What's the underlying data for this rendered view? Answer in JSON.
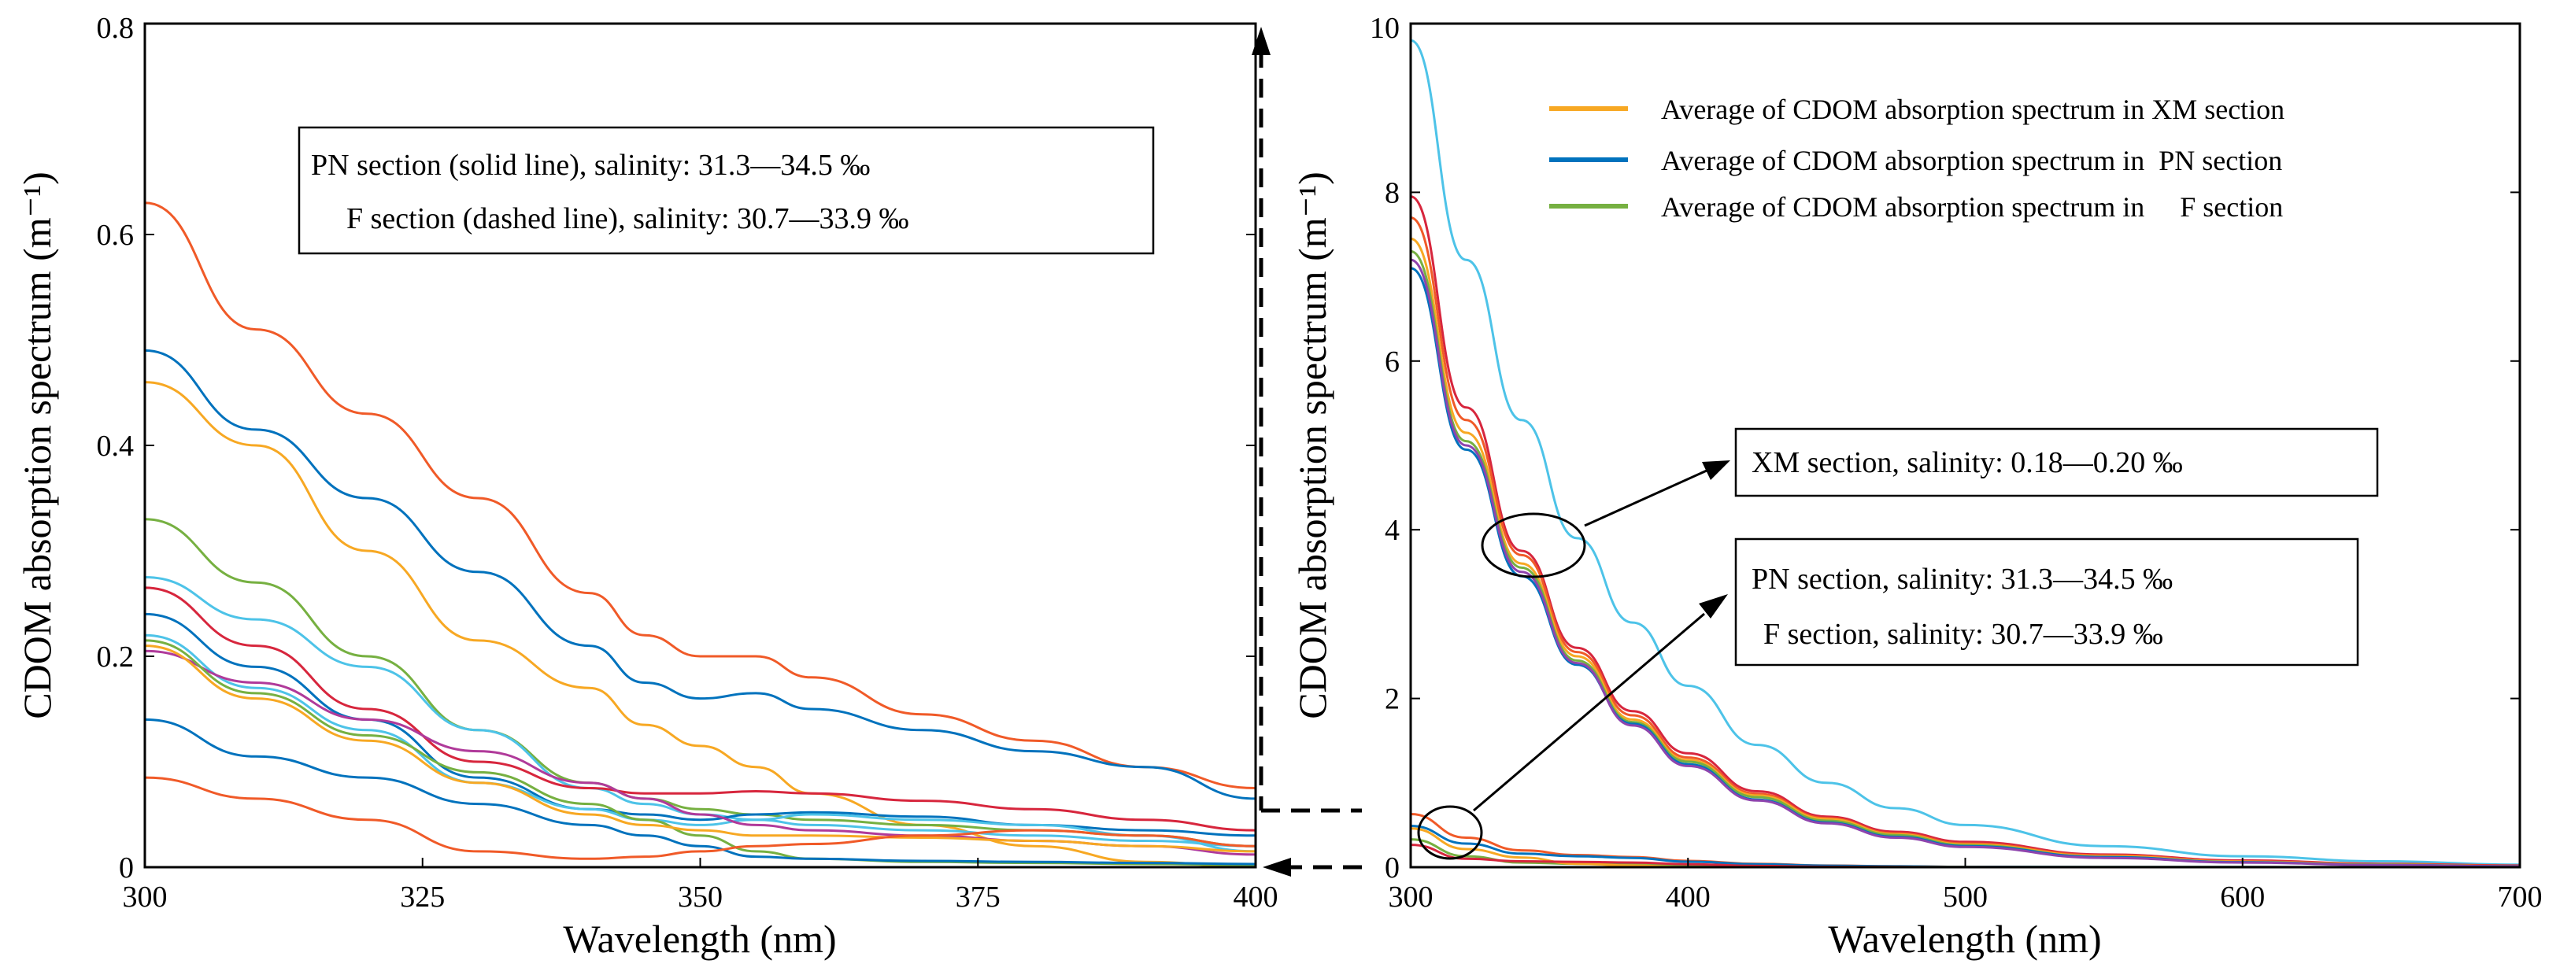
{
  "chart_data": [
    {
      "type": "line",
      "xlabel": "Wavelength (nm)",
      "ylabel": "CDOM absorption spectrum (m⁻¹)",
      "xlim": [
        300,
        400
      ],
      "ylim": [
        0,
        0.8
      ],
      "xticks": [
        "300",
        "325",
        "350",
        "375",
        "400"
      ],
      "yticks": [
        "0",
        "0.2",
        "0.4",
        "0.6",
        "0.8"
      ],
      "grid": false,
      "annotation": [
        "PN section (solid line), salinity: 31.3—34.5 ‰",
        "F section (dashed line), salinity: 30.7—33.9 ‰"
      ],
      "x": [
        300,
        310,
        320,
        330,
        340,
        345,
        350,
        355,
        360,
        370,
        380,
        390,
        400
      ],
      "series": [
        {
          "color": "#f05a28",
          "values": [
            0.63,
            0.51,
            0.43,
            0.35,
            0.26,
            0.22,
            0.2,
            0.2,
            0.18,
            0.145,
            0.12,
            0.095,
            0.075
          ]
        },
        {
          "color": "#0072bd",
          "values": [
            0.49,
            0.415,
            0.35,
            0.28,
            0.21,
            0.175,
            0.16,
            0.165,
            0.15,
            0.13,
            0.11,
            0.095,
            0.065
          ]
        },
        {
          "color": "#f7a823",
          "values": [
            0.46,
            0.4,
            0.3,
            0.215,
            0.17,
            0.135,
            0.115,
            0.095,
            0.07,
            0.04,
            0.02,
            0.005,
            0.0
          ]
        },
        {
          "color": "#76b041",
          "values": [
            0.33,
            0.27,
            0.2,
            0.13,
            0.08,
            0.065,
            0.055,
            0.05,
            0.045,
            0.04,
            0.035,
            0.03,
            0.02
          ]
        },
        {
          "color": "#4dc3e8",
          "values": [
            0.275,
            0.235,
            0.19,
            0.13,
            0.075,
            0.06,
            0.05,
            0.045,
            0.04,
            0.035,
            0.03,
            0.025,
            0.02
          ]
        },
        {
          "color": "#d7263d",
          "values": [
            0.265,
            0.21,
            0.15,
            0.1,
            0.075,
            0.07,
            0.07,
            0.072,
            0.07,
            0.063,
            0.055,
            0.045,
            0.035
          ]
        },
        {
          "color": "#0072bd",
          "values": [
            0.24,
            0.19,
            0.14,
            0.085,
            0.055,
            0.05,
            0.045,
            0.05,
            0.052,
            0.048,
            0.04,
            0.035,
            0.03
          ]
        },
        {
          "color": "#4dc3e8",
          "values": [
            0.22,
            0.17,
            0.13,
            0.08,
            0.055,
            0.045,
            0.04,
            0.045,
            0.05,
            0.045,
            0.04,
            0.03,
            0.015
          ]
        },
        {
          "color": "#b03a9a",
          "values": [
            0.205,
            0.175,
            0.14,
            0.11,
            0.08,
            0.065,
            0.05,
            0.04,
            0.035,
            0.03,
            0.025,
            0.02,
            0.012
          ]
        },
        {
          "color": "#76b041",
          "values": [
            0.215,
            0.165,
            0.125,
            0.09,
            0.06,
            0.045,
            0.03,
            0.015,
            0.008,
            0.005,
            0.004,
            0.003,
            0.002
          ]
        },
        {
          "color": "#f7a823",
          "values": [
            0.21,
            0.16,
            0.12,
            0.08,
            0.05,
            0.04,
            0.035,
            0.03,
            0.03,
            0.028,
            0.025,
            0.02,
            0.015
          ]
        },
        {
          "color": "#0072bd",
          "values": [
            0.14,
            0.105,
            0.085,
            0.06,
            0.04,
            0.03,
            0.02,
            0.01,
            0.008,
            0.006,
            0.005,
            0.004,
            0.003
          ]
        },
        {
          "color": "#f05a28",
          "values": [
            0.085,
            0.065,
            0.045,
            0.015,
            0.008,
            0.01,
            0.015,
            0.02,
            0.022,
            0.03,
            0.035,
            0.03,
            0.02
          ]
        }
      ]
    },
    {
      "type": "line",
      "xlabel": "Wavelength (nm)",
      "ylabel": "CDOM absorption spectrum (m⁻¹)",
      "xlim": [
        300,
        700
      ],
      "ylim": [
        0,
        10
      ],
      "xticks": [
        "300",
        "400",
        "500",
        "600",
        "700"
      ],
      "yticks": [
        "0",
        "2",
        "4",
        "6",
        "8",
        "10"
      ],
      "grid": false,
      "legend": {
        "placement": "top-right",
        "entries": [
          {
            "label": "Average of CDOM absorption spectrum in XM section",
            "color": "#f7a823"
          },
          {
            "label": "Average of CDOM absorption spectrum in  PN section",
            "color": "#0072bd"
          },
          {
            "label": "Average of CDOM absorption spectrum in     F section",
            "color": "#76b041"
          }
        ]
      },
      "annotations": [
        "XM section, salinity: 0.18—0.20 ‰",
        "PN section, salinity: 31.3—34.5 ‰",
        "F section, salinity: 30.7—33.9 ‰"
      ],
      "x": [
        300,
        320,
        340,
        360,
        380,
        400,
        425,
        450,
        475,
        500,
        550,
        600,
        650,
        700
      ],
      "series": [
        {
          "color": "#4dc3e8",
          "values": [
            9.8,
            7.2,
            5.3,
            3.9,
            2.9,
            2.15,
            1.45,
            1.0,
            0.7,
            0.5,
            0.25,
            0.13,
            0.07,
            0.03
          ]
        },
        {
          "color": "#d7263d",
          "values": [
            7.95,
            5.45,
            3.75,
            2.6,
            1.85,
            1.35,
            0.9,
            0.6,
            0.42,
            0.3,
            0.15,
            0.08,
            0.04,
            0.02
          ]
        },
        {
          "color": "#f05a28",
          "values": [
            7.7,
            5.3,
            3.7,
            2.55,
            1.8,
            1.3,
            0.87,
            0.58,
            0.4,
            0.28,
            0.14,
            0.07,
            0.035,
            0.015
          ]
        },
        {
          "color": "#f7a823",
          "values": [
            7.45,
            5.15,
            3.6,
            2.5,
            1.75,
            1.27,
            0.85,
            0.57,
            0.39,
            0.27,
            0.13,
            0.065,
            0.03,
            0.01
          ]
        },
        {
          "color": "#76b041",
          "values": [
            7.3,
            5.05,
            3.55,
            2.45,
            1.72,
            1.25,
            0.83,
            0.55,
            0.38,
            0.26,
            0.12,
            0.06,
            0.03,
            0.01
          ]
        },
        {
          "color": "#0072bd",
          "values": [
            7.1,
            4.95,
            3.45,
            2.4,
            1.7,
            1.22,
            0.8,
            0.53,
            0.36,
            0.25,
            0.12,
            0.06,
            0.025,
            0.01
          ]
        },
        {
          "color": "#8e44ad",
          "values": [
            7.2,
            5.0,
            3.5,
            2.42,
            1.68,
            1.2,
            0.79,
            0.52,
            0.35,
            0.24,
            0.11,
            0.055,
            0.025,
            0.01
          ]
        },
        {
          "color": "#f05a28",
          "values": [
            0.63,
            0.35,
            0.2,
            0.145,
            0.12,
            0.075,
            0.04,
            0.02,
            0.01,
            0.005,
            0.003,
            0.002,
            0.001,
            0.0
          ]
        },
        {
          "color": "#0072bd",
          "values": [
            0.49,
            0.28,
            0.16,
            0.13,
            0.11,
            0.065,
            0.035,
            0.018,
            0.01,
            0.005,
            0.003,
            0.002,
            0.001,
            0.0
          ]
        },
        {
          "color": "#76b041",
          "values": [
            0.33,
            0.13,
            0.055,
            0.04,
            0.035,
            0.02,
            0.01,
            0.005,
            0.003,
            0.002,
            0.001,
            0.001,
            0.0,
            0.0
          ]
        },
        {
          "color": "#f7a823",
          "values": [
            0.46,
            0.215,
            0.115,
            0.04,
            0.02,
            0.0,
            0.0,
            0.0,
            0.0,
            0.0,
            0.0,
            0.0,
            0.0,
            0.0
          ]
        },
        {
          "color": "#d7263d",
          "values": [
            0.265,
            0.1,
            0.07,
            0.063,
            0.055,
            0.035,
            0.015,
            0.005,
            0.002,
            0.001,
            0.0,
            0.0,
            0.0,
            0.0
          ]
        }
      ]
    }
  ]
}
